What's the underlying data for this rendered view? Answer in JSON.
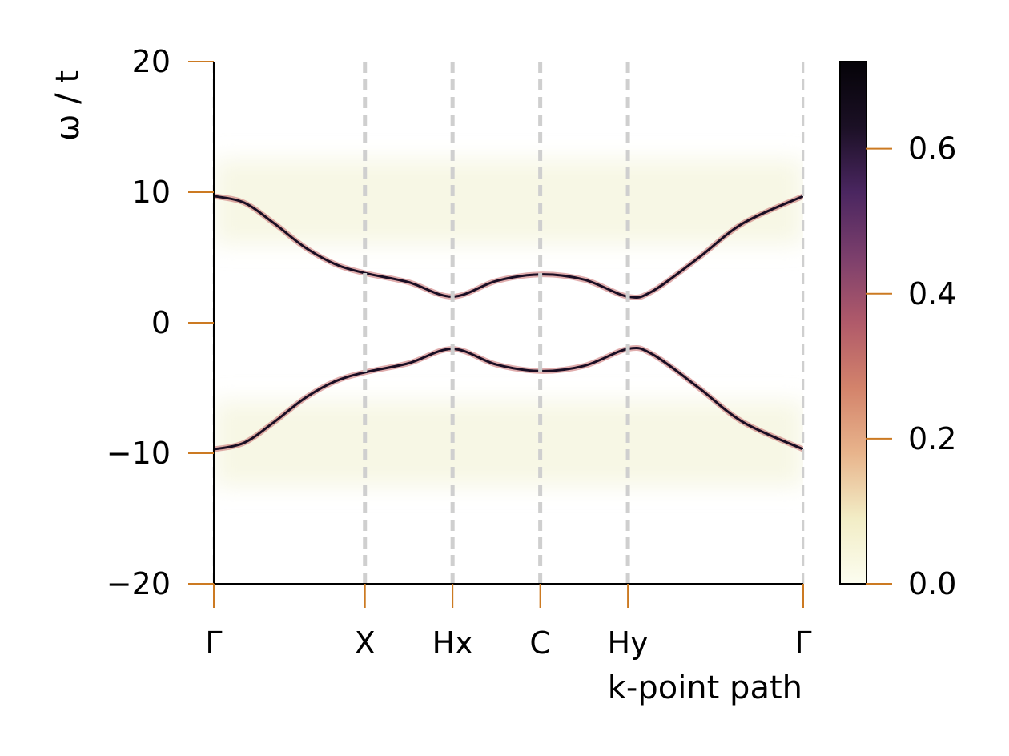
{
  "chart_data": {
    "type": "heatmap",
    "title": "",
    "xlabel": "k-point path",
    "ylabel": "ω / t",
    "ylim": [
      -20,
      20
    ],
    "y_ticks": [
      {
        "value": 20,
        "label": "20"
      },
      {
        "value": 10,
        "label": "10"
      },
      {
        "value": 0,
        "label": "0"
      },
      {
        "value": -10,
        "label": "−10"
      },
      {
        "value": -20,
        "label": "−20"
      }
    ],
    "k_points": [
      {
        "label": "Γ",
        "position": 0.0
      },
      {
        "label": "X",
        "position": 1.0
      },
      {
        "label": "Hx",
        "position": 1.58
      },
      {
        "label": "C",
        "position": 2.16
      },
      {
        "label": "Hy",
        "position": 2.74
      },
      {
        "label": "Γ",
        "position": 3.9
      }
    ],
    "xlim": [
      0,
      3.9
    ],
    "bands": [
      {
        "name": "",
        "k": [
          0,
          0.2,
          0.4,
          0.6,
          0.8,
          1.0,
          1.29,
          1.58,
          1.87,
          2.16,
          2.45,
          2.74,
          2.9,
          3.2,
          3.5,
          3.9
        ],
        "omega": [
          9.7,
          9.2,
          7.6,
          5.8,
          4.5,
          3.8,
          3.1,
          2.0,
          3.2,
          3.7,
          3.3,
          2.0,
          2.4,
          4.9,
          7.6,
          9.7
        ]
      },
      {
        "name": "",
        "k": [
          0,
          0.2,
          0.4,
          0.6,
          0.8,
          1.0,
          1.29,
          1.58,
          1.87,
          2.16,
          2.45,
          2.74,
          2.9,
          3.2,
          3.5,
          3.9
        ],
        "omega": [
          -9.7,
          -9.2,
          -7.6,
          -5.8,
          -4.5,
          -3.8,
          -3.1,
          -2.0,
          -3.2,
          -3.7,
          -3.3,
          -2.0,
          -2.4,
          -4.9,
          -7.6,
          -9.7
        ]
      }
    ],
    "colormap": "magma_r",
    "colorbar": {
      "range": [
        0.0,
        0.72
      ],
      "ticks": [
        {
          "value": 0.0,
          "label": "0.0"
        },
        {
          "value": 0.2,
          "label": "0.2"
        },
        {
          "value": 0.4,
          "label": "0.4"
        },
        {
          "value": 0.6,
          "label": "0.6"
        }
      ],
      "colors": [
        "#fcfdf0",
        "#f2edc6",
        "#e8b48c",
        "#d3836b",
        "#b05a6a",
        "#7c3f6c",
        "#4a2660",
        "#1b1025",
        "#050308"
      ]
    },
    "band_color_peak": "#1a0e24",
    "band_color_edge": "#c76a6a",
    "diffuse_color": "#f4f4dc",
    "tick_color": "#cc7a22",
    "grid_color": "#cfcfcf",
    "grid": false,
    "vertical_dashed_lines_at_k_points": true,
    "legend": "none"
  }
}
